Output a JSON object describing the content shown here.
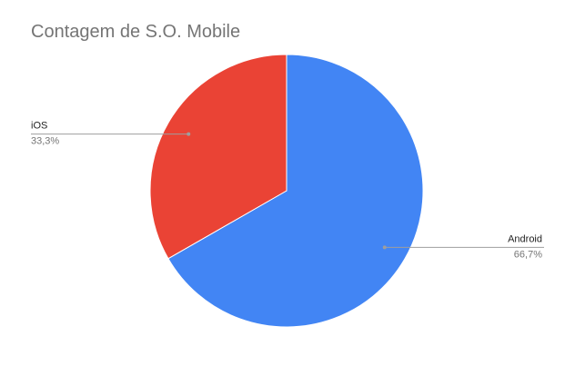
{
  "chart_data": {
    "type": "pie",
    "title": "Contagem de S.O. Mobile",
    "slices": [
      {
        "label": "Android",
        "value": 66.7,
        "value_label": "66,7%",
        "color": "#4285F4"
      },
      {
        "label": "iOS",
        "value": 33.3,
        "value_label": "33,3%",
        "color": "#EA4335"
      }
    ],
    "start_angle_deg": 0,
    "direction": "clockwise",
    "legend": "callout-labels"
  }
}
